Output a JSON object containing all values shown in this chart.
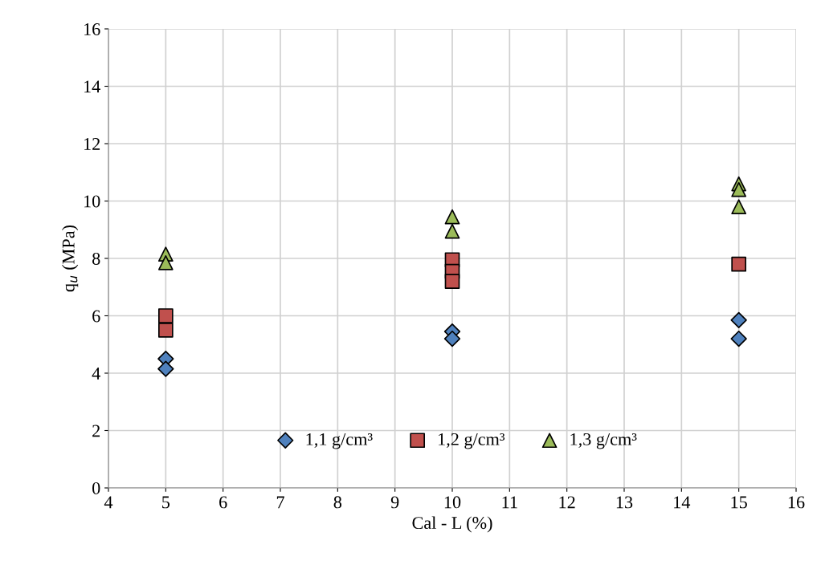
{
  "chart_data": {
    "type": "scatter",
    "xlabel": "Cal - L (%)",
    "ylabel": "q$_{u}$ (MPa)",
    "xlim": [
      4,
      16
    ],
    "xticks": [
      4,
      5,
      6,
      7,
      8,
      9,
      10,
      11,
      12,
      13,
      14,
      15,
      16
    ],
    "ylim": [
      0,
      16
    ],
    "yticks": [
      0,
      2,
      4,
      6,
      8,
      10,
      12,
      14,
      16
    ],
    "grid": true,
    "legend": "bottom",
    "series": [
      {
        "name": "1,1 g/cm³",
        "color": "#4f81bd",
        "marker": "diamond",
        "x": [
          5,
          5,
          10,
          10,
          15,
          15
        ],
        "values": [
          4.5,
          4.15,
          5.45,
          5.2,
          5.85,
          5.2
        ]
      },
      {
        "name": "1,2 g/cm³",
        "color": "#c0504d",
        "marker": "square",
        "x": [
          5,
          5,
          10,
          10,
          10,
          15
        ],
        "values": [
          6.0,
          5.5,
          7.95,
          7.55,
          7.2,
          7.8
        ]
      },
      {
        "name": "1,3 g/cm³",
        "color": "#9bbb59",
        "marker": "triangle",
        "x": [
          5,
          5,
          10,
          10,
          15,
          15,
          15
        ],
        "values": [
          8.15,
          7.85,
          9.45,
          8.95,
          10.6,
          10.4,
          9.8
        ]
      }
    ]
  }
}
